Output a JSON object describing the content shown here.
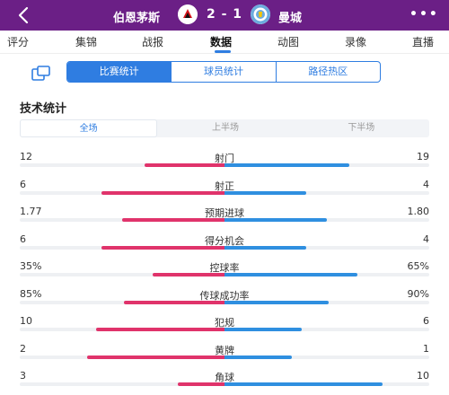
{
  "header": {
    "back_icon": "back-arrow-icon",
    "home_team": "伯恩茅斯",
    "home_logo": "bournemouth-badge-icon",
    "score": "2 - 1",
    "away_logo": "man-city-badge-icon",
    "away_team": "曼城",
    "more_label": "•••",
    "bg_color": "#6b1f86"
  },
  "tabs": [
    {
      "label": "评分"
    },
    {
      "label": "集锦"
    },
    {
      "label": "战报"
    },
    {
      "label": "数据",
      "active": true
    },
    {
      "label": "动图"
    },
    {
      "label": "录像"
    },
    {
      "label": "直播"
    }
  ],
  "subtabs": {
    "share_icon": "share-screenshot-icon",
    "items": [
      {
        "label": "比赛统计",
        "active": true
      },
      {
        "label": "球员统计"
      },
      {
        "label": "路径热区"
      }
    ]
  },
  "section_title": "技术统计",
  "periods": [
    {
      "label": "全场",
      "active": true
    },
    {
      "label": "上半场"
    },
    {
      "label": "下半场"
    }
  ],
  "colors": {
    "home_bar": "#e0336b",
    "away_bar": "#2f8fe0",
    "accent": "#2f7de1"
  },
  "stats": [
    {
      "label": "射门",
      "home": "12",
      "away": "19",
      "home_frac": 0.39,
      "away_frac": 0.61
    },
    {
      "label": "射正",
      "home": "6",
      "away": "4",
      "home_frac": 0.6,
      "away_frac": 0.4
    },
    {
      "label": "预期进球",
      "home": "1.77",
      "away": "1.80",
      "home_frac": 0.5,
      "away_frac": 0.5
    },
    {
      "label": "得分机会",
      "home": "6",
      "away": "4",
      "home_frac": 0.6,
      "away_frac": 0.4
    },
    {
      "label": "控球率",
      "home": "35%",
      "away": "65%",
      "home_frac": 0.35,
      "away_frac": 0.65
    },
    {
      "label": "传球成功率",
      "home": "85%",
      "away": "90%",
      "home_frac": 0.49,
      "away_frac": 0.51
    },
    {
      "label": "犯规",
      "home": "10",
      "away": "6",
      "home_frac": 0.625,
      "away_frac": 0.375
    },
    {
      "label": "黄牌",
      "home": "2",
      "away": "1",
      "home_frac": 0.67,
      "away_frac": 0.33
    },
    {
      "label": "角球",
      "home": "3",
      "away": "10",
      "home_frac": 0.23,
      "away_frac": 0.77
    }
  ]
}
